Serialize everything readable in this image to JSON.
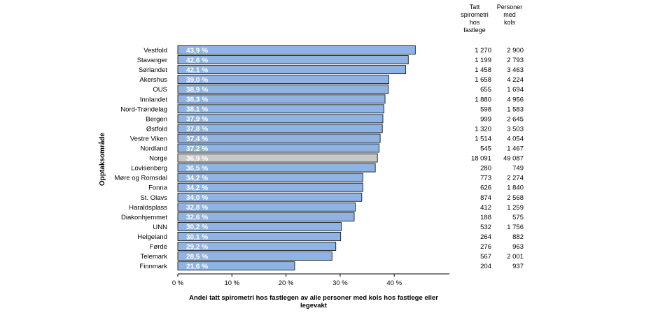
{
  "chart_data": {
    "type": "bar",
    "orientation": "horizontal",
    "ylabel": "Opptaksområde",
    "xlabel": "Andel tatt spirometri hos fastlegen av alle personer med kols hos fastlege eller legevakt",
    "xlabel_lines": [
      "Andel tatt spirometri hos fastlegen av alle personer med kols hos fastlege eller",
      "legevakt"
    ],
    "xlim": [
      0,
      50
    ],
    "xticks": [
      0,
      10,
      20,
      30,
      40
    ],
    "xtick_labels": [
      "0 %",
      "10 %",
      "20 %",
      "30 %",
      "40 %"
    ],
    "bar_color": "#8fb4e3",
    "highlight_color": "#c8c8c8",
    "highlight_category": "Norge",
    "column_headers": {
      "col1": [
        "Tatt",
        "spirometri",
        "hos",
        "fastlege"
      ],
      "col2": [
        "Personer",
        "med",
        "kols"
      ]
    },
    "rows": [
      {
        "category": "Vestfold",
        "value": 43.9,
        "label": "43,9 %",
        "col1": "1 270",
        "col2": "2 900"
      },
      {
        "category": "Stavanger",
        "value": 42.6,
        "label": "42,6 %",
        "col1": "1 199",
        "col2": "2 793"
      },
      {
        "category": "Sørlandet",
        "value": 42.1,
        "label": "42,1 %",
        "col1": "1 458",
        "col2": "3 463"
      },
      {
        "category": "Akershus",
        "value": 39.0,
        "label": "39,0 %",
        "col1": "1 658",
        "col2": "4 224"
      },
      {
        "category": "OUS",
        "value": 38.9,
        "label": "38,9 %",
        "col1": "655",
        "col2": "1 694"
      },
      {
        "category": "Innlandet",
        "value": 38.3,
        "label": "38,3 %",
        "col1": "1 880",
        "col2": "4 956"
      },
      {
        "category": "Nord-Trøndelag",
        "value": 38.1,
        "label": "38,1 %",
        "col1": "598",
        "col2": "1 583"
      },
      {
        "category": "Bergen",
        "value": 37.9,
        "label": "37,9 %",
        "col1": "999",
        "col2": "2 645"
      },
      {
        "category": "Østfold",
        "value": 37.8,
        "label": "37,8 %",
        "col1": "1 320",
        "col2": "3 503"
      },
      {
        "category": "Vestre Viken",
        "value": 37.4,
        "label": "37,4 %",
        "col1": "1 514",
        "col2": "4 054"
      },
      {
        "category": "Nordland",
        "value": 37.2,
        "label": "37,2 %",
        "col1": "545",
        "col2": "1 467"
      },
      {
        "category": "Norge",
        "value": 36.9,
        "label": "36,9 %",
        "col1": "18 091",
        "col2": "49 087"
      },
      {
        "category": "Lovisenberg",
        "value": 36.5,
        "label": "36,5 %",
        "col1": "280",
        "col2": "749"
      },
      {
        "category": "Møre og Romsdal",
        "value": 34.2,
        "label": "34,2 %",
        "col1": "773",
        "col2": "2 274"
      },
      {
        "category": "Fonna",
        "value": 34.2,
        "label": "34,2 %",
        "col1": "626",
        "col2": "1 840"
      },
      {
        "category": "St. Olavs",
        "value": 34.0,
        "label": "34,0 %",
        "col1": "874",
        "col2": "2 568"
      },
      {
        "category": "Haraldsplass",
        "value": 32.8,
        "label": "32,8 %",
        "col1": "412",
        "col2": "1 259"
      },
      {
        "category": "Diakonhjemmet",
        "value": 32.6,
        "label": "32,6 %",
        "col1": "188",
        "col2": "575"
      },
      {
        "category": "UNN",
        "value": 30.2,
        "label": "30,2 %",
        "col1": "532",
        "col2": "1 756"
      },
      {
        "category": "Helgeland",
        "value": 30.1,
        "label": "30,1 %",
        "col1": "264",
        "col2": "882"
      },
      {
        "category": "Førde",
        "value": 29.2,
        "label": "29,2 %",
        "col1": "276",
        "col2": "963"
      },
      {
        "category": "Telemark",
        "value": 28.5,
        "label": "28,5 %",
        "col1": "567",
        "col2": "2 001"
      },
      {
        "category": "Finnmark",
        "value": 21.6,
        "label": "21,6 %",
        "col1": "204",
        "col2": "937"
      }
    ]
  }
}
